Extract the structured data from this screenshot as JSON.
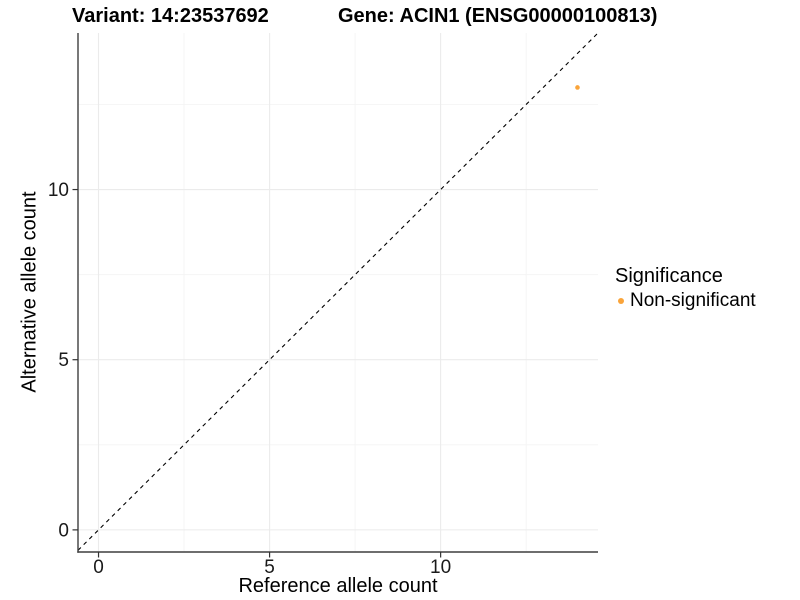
{
  "chart_data": {
    "type": "scatter",
    "title_left": "Variant: 14:23537692",
    "title_right": "Gene: ACIN1 (ENSG00000100813)",
    "xlabel": "Reference allele count",
    "ylabel": "Alternative allele count",
    "xlim": [
      -0.6,
      14.6
    ],
    "ylim": [
      -0.65,
      14.6
    ],
    "xticks": [
      0,
      5,
      10
    ],
    "yticks": [
      0,
      5,
      10
    ],
    "xticks_minor": [
      2.5,
      7.5,
      12.5
    ],
    "yticks_minor": [
      2.5,
      7.5,
      12.5
    ],
    "grid": "major_and_minor",
    "legend_position": "right",
    "reference_line": {
      "type": "identity",
      "equation": "y = x",
      "style": "dashed",
      "color": "#000000"
    },
    "legend": {
      "title": "Significance",
      "items": [
        {
          "label": "Non-significant",
          "color": "#FAA43A"
        }
      ]
    },
    "series": [
      {
        "name": "Non-significant",
        "color": "#FAA43A",
        "marker": "circle",
        "points": [
          {
            "x": 14,
            "y": 13
          }
        ]
      }
    ]
  },
  "style": {
    "background": "#FFFFFF",
    "axis_line_color": "#3F3F3F",
    "tick_color": "#333333",
    "grid_major_color": "#EBEBEB",
    "grid_minor_color": "#F4F4F4",
    "tick_label_color": "#1A1A1A",
    "text_color": "#000000",
    "point_color": "#FAA43A"
  }
}
